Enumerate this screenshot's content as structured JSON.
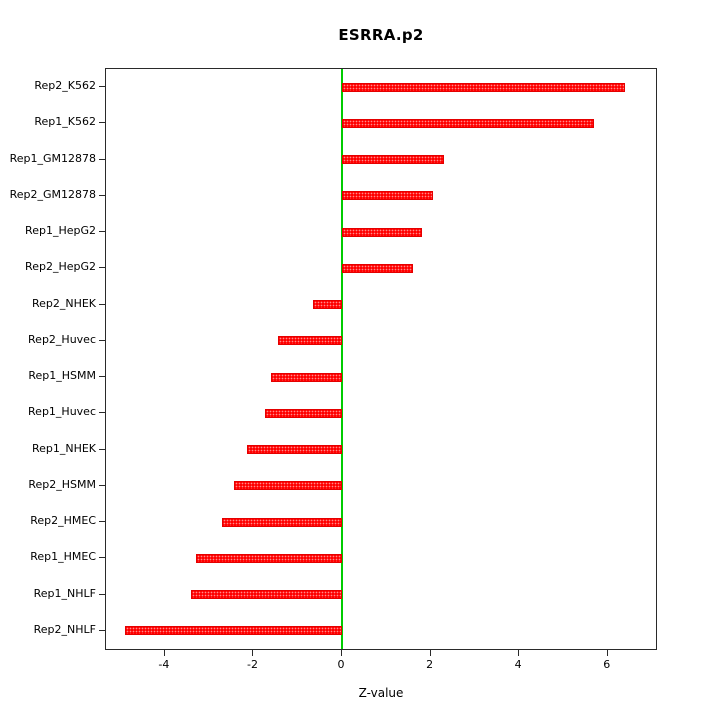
{
  "chart_data": {
    "type": "bar",
    "orientation": "horizontal",
    "title": "ESRRA.p2",
    "xlabel": "Z-value",
    "ylabel": "",
    "grid": false,
    "legend": null,
    "bar_color": "#ff0000",
    "zero_line_color": "#00cc00",
    "xlim": [
      -5.33,
      7.09
    ],
    "x_ticks": [
      -4,
      -2,
      0,
      2,
      4,
      6
    ],
    "categories": [
      "Rep2_K562",
      "Rep1_K562",
      "Rep1_GM12878",
      "Rep2_GM12878",
      "Rep1_HepG2",
      "Rep2_HepG2",
      "Rep2_NHEK",
      "Rep2_Huvec",
      "Rep1_HSMM",
      "Rep1_Huvec",
      "Rep1_NHEK",
      "Rep2_HSMM",
      "Rep2_HMEC",
      "Rep1_HMEC",
      "Rep1_NHLF",
      "Rep2_NHLF"
    ],
    "values": [
      6.4,
      5.7,
      2.3,
      2.05,
      1.8,
      1.6,
      -0.65,
      -1.45,
      -1.6,
      -1.75,
      -2.15,
      -2.45,
      -2.7,
      -3.3,
      -3.4,
      -4.9
    ]
  }
}
